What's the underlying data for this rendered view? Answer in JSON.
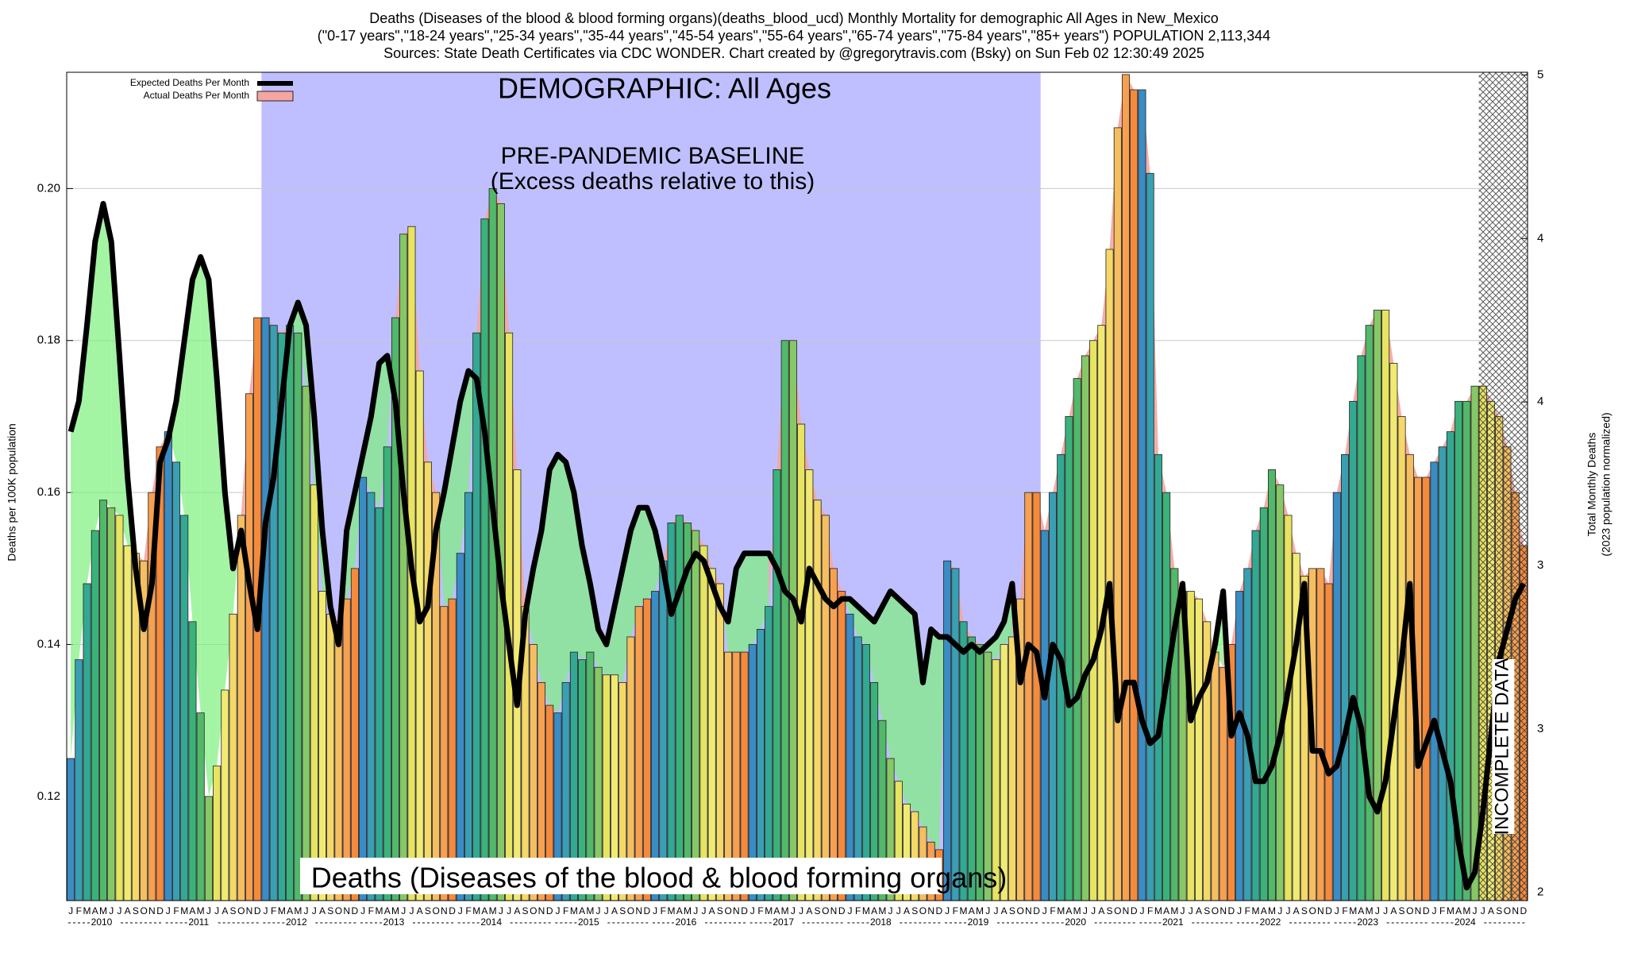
{
  "chart_data": {
    "type": "bar",
    "title_lines": [
      "Deaths (Diseases of the blood & blood forming organs)(deaths_blood_ucd) Monthly Mortality for demographic All Ages in New_Mexico",
      "(\"0-17 years\",\"18-24 years\",\"25-34 years\",\"35-44 years\",\"45-54 years\",\"55-64 years\",\"65-74 years\",\"75-84 years\",\"85+ years\") POPULATION 2,113,344",
      "Sources: State Death Certificates via CDC WONDER.              Chart created by @gregorytravis.com (Bsky) on Sun Feb 02 12:30:49 2025"
    ],
    "demographic_label": "DEMOGRAPHIC: All Ages",
    "baseline_label": "PRE-PANDEMIC BASELINE",
    "baseline_note": "(Excess deaths relative to this)",
    "cause_label": "Deaths (Diseases of the blood & blood forming organs)",
    "incomplete_label": "INCOMPLETE DATA",
    "ylabel": "Deaths per 100K population",
    "y2label": [
      "Total Monthly Deaths",
      "(2023 population normalized)"
    ],
    "months": [
      "J",
      "F",
      "M",
      "A",
      "M",
      "J",
      "J",
      "A",
      "S",
      "O",
      "N",
      "D"
    ],
    "years": [
      2010,
      2011,
      2012,
      2013,
      2014,
      2015,
      2016,
      2017,
      2018,
      2019,
      2020,
      2021,
      2022,
      2023,
      2024
    ],
    "month_colors": [
      "#3a8cc4",
      "#3a9fb2",
      "#33a892",
      "#3bb27a",
      "#52b86a",
      "#86c866",
      "#e6e460",
      "#f0ea72",
      "#f4d868",
      "#f5be60",
      "#f6a050",
      "#f48a3c"
    ],
    "ylim": [
      0.1063,
      0.2153
    ],
    "yticks": [
      0.12,
      0.14,
      0.16,
      0.18,
      {
        "value": 0.2,
        "label": "0.20"
      }
    ],
    "y2lim": [
      1.97,
      5.01
    ],
    "y2ticks": [
      2,
      {
        "value": 2.6,
        "label": "3"
      },
      {
        "value": 3.2,
        "label": "3"
      },
      {
        "value": 3.8,
        "label": "4"
      },
      {
        "value": 4.4,
        "label": "4"
      },
      5
    ],
    "grid": true,
    "series": [
      {
        "name": "Expected Deaths Per Month",
        "color": "#000000",
        "values": [
          0.168,
          0.172,
          0.182,
          0.193,
          0.198,
          0.193,
          0.178,
          0.162,
          0.15,
          0.142,
          0.148,
          0.164,
          0.167,
          0.172,
          0.18,
          0.188,
          0.191,
          0.188,
          0.175,
          0.16,
          0.15,
          0.155,
          0.148,
          0.142,
          0.156,
          0.162,
          0.172,
          0.182,
          0.185,
          0.182,
          0.17,
          0.155,
          0.145,
          0.14,
          0.155,
          0.16,
          0.165,
          0.17,
          0.177,
          0.178,
          0.172,
          0.16,
          0.15,
          0.143,
          0.145,
          0.155,
          0.16,
          0.166,
          0.172,
          0.176,
          0.175,
          0.168,
          0.158,
          0.148,
          0.14,
          0.132,
          0.144,
          0.15,
          0.155,
          0.163,
          0.165,
          0.164,
          0.16,
          0.153,
          0.148,
          0.142,
          0.14,
          0.145,
          0.15,
          0.155,
          0.158,
          0.158,
          0.155,
          0.15,
          0.144,
          0.147,
          0.15,
          0.152,
          0.151,
          0.148,
          0.145,
          0.143,
          0.15,
          0.152,
          0.152,
          0.152,
          0.152,
          0.15,
          0.147,
          0.146,
          0.143,
          0.15,
          0.148,
          0.146,
          0.145,
          0.146,
          0.146,
          0.145,
          0.144,
          0.143,
          0.145,
          0.147,
          0.146,
          0.145,
          0.144,
          0.135,
          0.142,
          0.141,
          0.141,
          0.14,
          0.139,
          0.14,
          0.139,
          0.14,
          0.141,
          0.143,
          0.148,
          0.135,
          0.14,
          0.139,
          0.133,
          0.14,
          0.138,
          0.132,
          0.133,
          0.136,
          0.138,
          0.142,
          0.148,
          0.13,
          0.135,
          0.135,
          0.13,
          0.127,
          0.128,
          0.135,
          0.142,
          0.148,
          0.13,
          0.133,
          0.135,
          0.14,
          0.147,
          0.128,
          0.131,
          0.128,
          0.122,
          0.122,
          0.124,
          0.128,
          0.134,
          0.14,
          0.148,
          0.126,
          0.126,
          0.123,
          0.124,
          0.128,
          0.133,
          0.129,
          0.12,
          0.118,
          0.122,
          0.13,
          0.138,
          0.148,
          0.124,
          0.127,
          0.13,
          0.126,
          0.122,
          0.114,
          0.108,
          0.11,
          0.118,
          0.128,
          0.138,
          0.142,
          0.146,
          0.148
        ]
      },
      {
        "name": "Actual Deaths Per Month",
        "color": "#f4a6a0",
        "values": [
          0.125,
          0.138,
          0.148,
          0.155,
          0.159,
          0.158,
          0.157,
          0.153,
          0.152,
          0.151,
          0.16,
          0.166,
          0.168,
          0.164,
          0.157,
          0.143,
          0.131,
          0.12,
          0.124,
          0.134,
          0.144,
          0.157,
          0.173,
          0.183,
          0.183,
          0.182,
          0.181,
          0.182,
          0.181,
          0.174,
          0.161,
          0.147,
          0.144,
          0.143,
          0.146,
          0.15,
          0.162,
          0.16,
          0.158,
          0.166,
          0.183,
          0.194,
          0.195,
          0.176,
          0.164,
          0.16,
          0.145,
          0.146,
          0.152,
          0.16,
          0.181,
          0.196,
          0.2,
          0.198,
          0.181,
          0.163,
          0.145,
          0.14,
          0.135,
          0.132,
          0.131,
          0.135,
          0.139,
          0.138,
          0.139,
          0.137,
          0.136,
          0.136,
          0.135,
          0.141,
          0.145,
          0.146,
          0.147,
          0.151,
          0.156,
          0.157,
          0.156,
          0.155,
          0.153,
          0.15,
          0.148,
          0.139,
          0.139,
          0.139,
          0.14,
          0.142,
          0.145,
          0.163,
          0.18,
          0.18,
          0.169,
          0.163,
          0.159,
          0.157,
          0.15,
          0.147,
          0.144,
          0.141,
          0.14,
          0.135,
          0.13,
          0.125,
          0.122,
          0.119,
          0.118,
          0.116,
          0.114,
          0.113,
          0.151,
          0.15,
          0.143,
          0.141,
          0.14,
          0.139,
          0.138,
          0.14,
          0.141,
          0.146,
          0.16,
          0.16,
          0.155,
          0.16,
          0.165,
          0.17,
          0.175,
          0.178,
          0.18,
          0.182,
          0.192,
          0.208,
          0.215,
          0.213,
          0.213,
          0.202,
          0.165,
          0.16,
          0.15,
          0.147,
          0.147,
          0.146,
          0.143,
          0.139,
          0.137,
          0.14,
          0.147,
          0.15,
          0.155,
          0.158,
          0.163,
          0.161,
          0.157,
          0.152,
          0.149,
          0.15,
          0.15,
          0.148,
          0.16,
          0.165,
          0.172,
          0.178,
          0.182,
          0.184,
          0.184,
          0.177,
          0.17,
          0.165,
          0.162,
          0.162,
          0.164,
          0.166,
          0.168,
          0.172,
          0.172,
          0.174,
          0.174,
          0.172,
          0.17,
          0.166,
          0.16,
          0.153
        ]
      }
    ]
  }
}
